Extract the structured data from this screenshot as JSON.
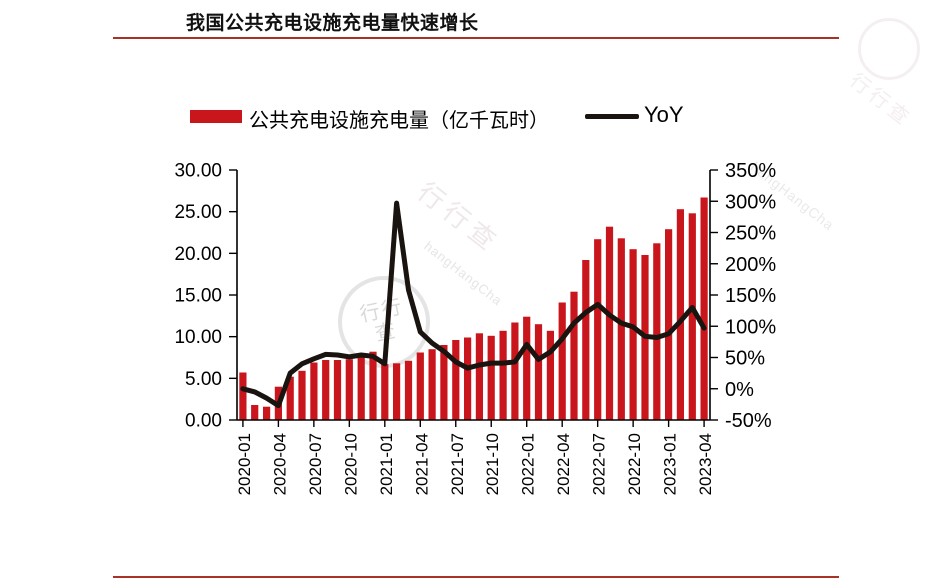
{
  "title": "我国公共充电设施充电量快速增长",
  "rule_color": "#a93226",
  "legend": {
    "bar_label": "公共充电设施充电量（亿千瓦时）",
    "line_label": "YoY"
  },
  "watermark": {
    "cjk": "行行查",
    "latin": "hangHangCha"
  },
  "chart_data": {
    "type": "bar",
    "subtype": "dual-axis bar+line",
    "title": "我国公共充电设施充电量快速增长",
    "grid": false,
    "legend_position": "top",
    "categories": [
      "2020-01",
      "2020-02",
      "2020-03",
      "2020-04",
      "2020-05",
      "2020-06",
      "2020-07",
      "2020-08",
      "2020-09",
      "2020-10",
      "2020-11",
      "2020-12",
      "2021-01",
      "2021-02",
      "2021-03",
      "2021-04",
      "2021-05",
      "2021-06",
      "2021-07",
      "2021-08",
      "2021-09",
      "2021-10",
      "2021-11",
      "2021-12",
      "2022-01",
      "2022-02",
      "2022-03",
      "2022-04",
      "2022-05",
      "2022-06",
      "2022-07",
      "2022-08",
      "2022-09",
      "2022-10",
      "2022-11",
      "2022-12",
      "2023-01",
      "2023-02",
      "2023-03",
      "2023-04"
    ],
    "x_tick_every": 3,
    "x_tick_labels": [
      "2020-01",
      "2020-04",
      "2020-07",
      "2020-10",
      "2021-01",
      "2021-04",
      "2021-07",
      "2021-10",
      "2022-01",
      "2022-04",
      "2022-07",
      "2022-10",
      "2023-01",
      "2023-04"
    ],
    "series": [
      {
        "name": "公共充电设施充电量（亿千瓦时）",
        "type": "bar",
        "axis": "left",
        "color": "#c9161d",
        "values": [
          5.7,
          1.8,
          1.6,
          4.0,
          5.2,
          5.9,
          6.9,
          7.2,
          7.2,
          7.3,
          7.7,
          8.2,
          6.7,
          6.8,
          7.1,
          8.1,
          8.5,
          9.0,
          9.6,
          9.9,
          10.4,
          10.1,
          10.7,
          11.7,
          12.4,
          11.5,
          10.7,
          14.1,
          15.4,
          19.2,
          21.7,
          23.2,
          21.8,
          20.5,
          19.8,
          21.2,
          22.9,
          25.3,
          24.8,
          26.7
        ]
      },
      {
        "name": "YoY",
        "type": "line",
        "axis": "right",
        "unit": "%",
        "color": "#1a1410",
        "values": [
          0,
          -5,
          -15,
          -27,
          25,
          40,
          48,
          55,
          54,
          51,
          54,
          52,
          40,
          297,
          158,
          91,
          73,
          60,
          43,
          33,
          38,
          41,
          41,
          43,
          71,
          47,
          59,
          80,
          105,
          122,
          135,
          118,
          105,
          99,
          84,
          82,
          88,
          108,
          130,
          97
        ]
      }
    ],
    "left_axis": {
      "min": 0,
      "max": 30,
      "ticks": [
        "30.00",
        "25.00",
        "20.00",
        "15.00",
        "10.00",
        "5.00",
        "0.00"
      ]
    },
    "right_axis": {
      "min": -50,
      "max": 350,
      "ticks": [
        "350%",
        "300%",
        "250%",
        "200%",
        "150%",
        "100%",
        "50%",
        "0%",
        "-50%"
      ]
    }
  }
}
